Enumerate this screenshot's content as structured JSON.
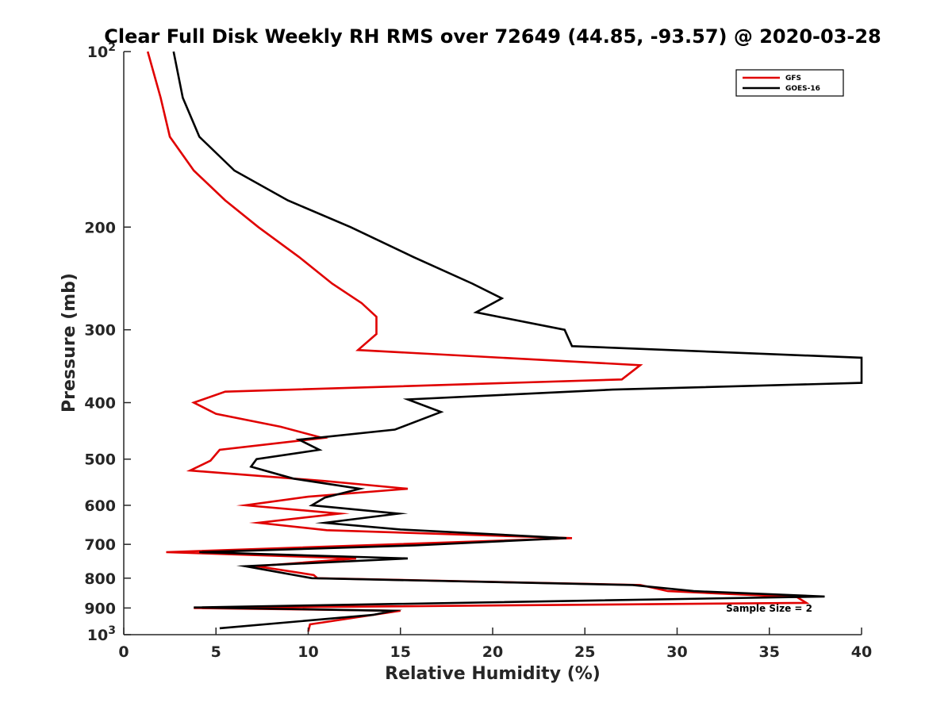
{
  "chart_data": {
    "type": "line",
    "title": "Clear Full Disk Weekly RH RMS over 72649 (44.85, -93.57) @ 2020-03-28",
    "xlabel": "Relative Humidity (%)",
    "ylabel": "Pressure (mb)",
    "xlim": [
      0,
      40
    ],
    "ylim": [
      100,
      1000
    ],
    "yscale": "log",
    "yreversed": true,
    "grid": false,
    "legend_position": "top-right",
    "x_ticks": [
      {
        "value": 0,
        "label": "0"
      },
      {
        "value": 5,
        "label": "5"
      },
      {
        "value": 10,
        "label": "10"
      },
      {
        "value": 15,
        "label": "15"
      },
      {
        "value": 20,
        "label": "20"
      },
      {
        "value": 25,
        "label": "25"
      },
      {
        "value": 30,
        "label": "30"
      },
      {
        "value": 35,
        "label": "35"
      },
      {
        "value": 40,
        "label": "40"
      }
    ],
    "y_ticks": [
      {
        "value": 100,
        "label": "10",
        "sup": "2"
      },
      {
        "value": 200,
        "label": "200"
      },
      {
        "value": 300,
        "label": "300"
      },
      {
        "value": 400,
        "label": "400"
      },
      {
        "value": 500,
        "label": "500"
      },
      {
        "value": 600,
        "label": "600"
      },
      {
        "value": 700,
        "label": "700"
      },
      {
        "value": 800,
        "label": "800"
      },
      {
        "value": 900,
        "label": "900"
      },
      {
        "value": 1000,
        "label": "10",
        "sup": "3"
      }
    ],
    "annotation": "Sample Size = 2",
    "series": [
      {
        "name": "GFS",
        "color": "#e00000",
        "points": [
          [
            1.3,
            100
          ],
          [
            2.0,
            120
          ],
          [
            2.5,
            140
          ],
          [
            3.8,
            160
          ],
          [
            5.5,
            180
          ],
          [
            7.3,
            200
          ],
          [
            9.5,
            225
          ],
          [
            11.3,
            250
          ],
          [
            12.9,
            270
          ],
          [
            13.7,
            285
          ],
          [
            13.7,
            305
          ],
          [
            12.7,
            325
          ],
          [
            28.0,
            345
          ],
          [
            27.0,
            365
          ],
          [
            5.5,
            383
          ],
          [
            3.8,
            400
          ],
          [
            5.0,
            418
          ],
          [
            8.5,
            440
          ],
          [
            10.8,
            460
          ],
          [
            5.2,
            482
          ],
          [
            4.7,
            503
          ],
          [
            3.6,
            523
          ],
          [
            10.9,
            545
          ],
          [
            15.4,
            562
          ],
          [
            10.0,
            580
          ],
          [
            6.6,
            600
          ],
          [
            11.7,
            620
          ],
          [
            7.3,
            643
          ],
          [
            11.0,
            662
          ],
          [
            24.3,
            683
          ],
          [
            2.3,
            722
          ],
          [
            12.6,
            740
          ],
          [
            7.2,
            763
          ],
          [
            10.3,
            790
          ],
          [
            10.5,
            800
          ],
          [
            28.0,
            822
          ],
          [
            29.5,
            842
          ],
          [
            36.5,
            862
          ],
          [
            37.0,
            882
          ],
          [
            3.8,
            900
          ],
          [
            15.0,
            910
          ],
          [
            10.1,
            960
          ],
          [
            10.0,
            988
          ]
        ]
      },
      {
        "name": "GOES-16",
        "color": "#000000",
        "points": [
          [
            2.7,
            100
          ],
          [
            3.2,
            120
          ],
          [
            4.1,
            140
          ],
          [
            6.0,
            160
          ],
          [
            8.9,
            180
          ],
          [
            12.3,
            200
          ],
          [
            15.7,
            225
          ],
          [
            18.9,
            250
          ],
          [
            20.5,
            265
          ],
          [
            19.1,
            280
          ],
          [
            23.9,
            300
          ],
          [
            24.3,
            320
          ],
          [
            40.0,
            335
          ],
          [
            40.0,
            370
          ],
          [
            26.5,
            380
          ],
          [
            15.4,
            395
          ],
          [
            17.2,
            415
          ],
          [
            14.7,
            445
          ],
          [
            9.5,
            463
          ],
          [
            10.6,
            482
          ],
          [
            7.2,
            500
          ],
          [
            6.9,
            515
          ],
          [
            9.2,
            540
          ],
          [
            12.8,
            562
          ],
          [
            10.9,
            582
          ],
          [
            10.2,
            600
          ],
          [
            14.9,
            620
          ],
          [
            10.9,
            643
          ],
          [
            15.0,
            660
          ],
          [
            24.0,
            683
          ],
          [
            15.8,
            703
          ],
          [
            4.1,
            722
          ],
          [
            15.4,
            740
          ],
          [
            6.6,
            763
          ],
          [
            10.2,
            800
          ],
          [
            27.6,
            822
          ],
          [
            30.9,
            842
          ],
          [
            38.0,
            860
          ],
          [
            3.8,
            898
          ],
          [
            14.6,
            910
          ],
          [
            13.5,
            925
          ],
          [
            5.2,
            975
          ]
        ]
      }
    ]
  }
}
